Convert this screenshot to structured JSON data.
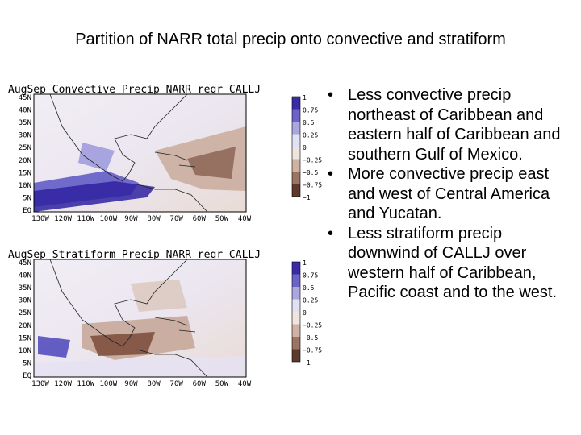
{
  "title": "Partition of NARR total precip onto convective and stratiform",
  "panels": [
    {
      "title": "AugSep Convective Precip NARR regr CALLJ",
      "lat_labels": [
        "45N",
        "40N",
        "35N",
        "30N",
        "25N",
        "20N",
        "15N",
        "10N",
        "5N",
        "EQ"
      ],
      "lon_labels": [
        "130W",
        "120W",
        "110W",
        "100W",
        "90W",
        "80W",
        "70W",
        "60W",
        "50W",
        "40W"
      ],
      "colorbar_labels": [
        "1",
        "0.75",
        "0.5",
        "0.25",
        "0",
        "−0.25",
        "−0.5",
        "−0.75",
        "−1"
      ]
    },
    {
      "title": "AugSep Stratiform Precip NARR regr CALLJ",
      "lat_labels": [
        "45N",
        "40N",
        "35N",
        "30N",
        "25N",
        "20N",
        "15N",
        "10N",
        "5N",
        "EQ"
      ],
      "lon_labels": [
        "130W",
        "120W",
        "110W",
        "100W",
        "90W",
        "80W",
        "70W",
        "60W",
        "50W",
        "40W"
      ],
      "colorbar_labels": [
        "1",
        "0.75",
        "0.5",
        "0.25",
        "0",
        "−0.25",
        "−0.5",
        "−0.75",
        "−1"
      ]
    }
  ],
  "bullets": [
    "Less convective precip northeast of Caribbean and eastern half of Caribbean and southern Gulf of Mexico.",
    "More convective precip east and west of Central America and Yucatan.",
    "Less stratiform precip downwind of CALLJ over western half of Caribbean, Pacific coast and to the west."
  ]
}
